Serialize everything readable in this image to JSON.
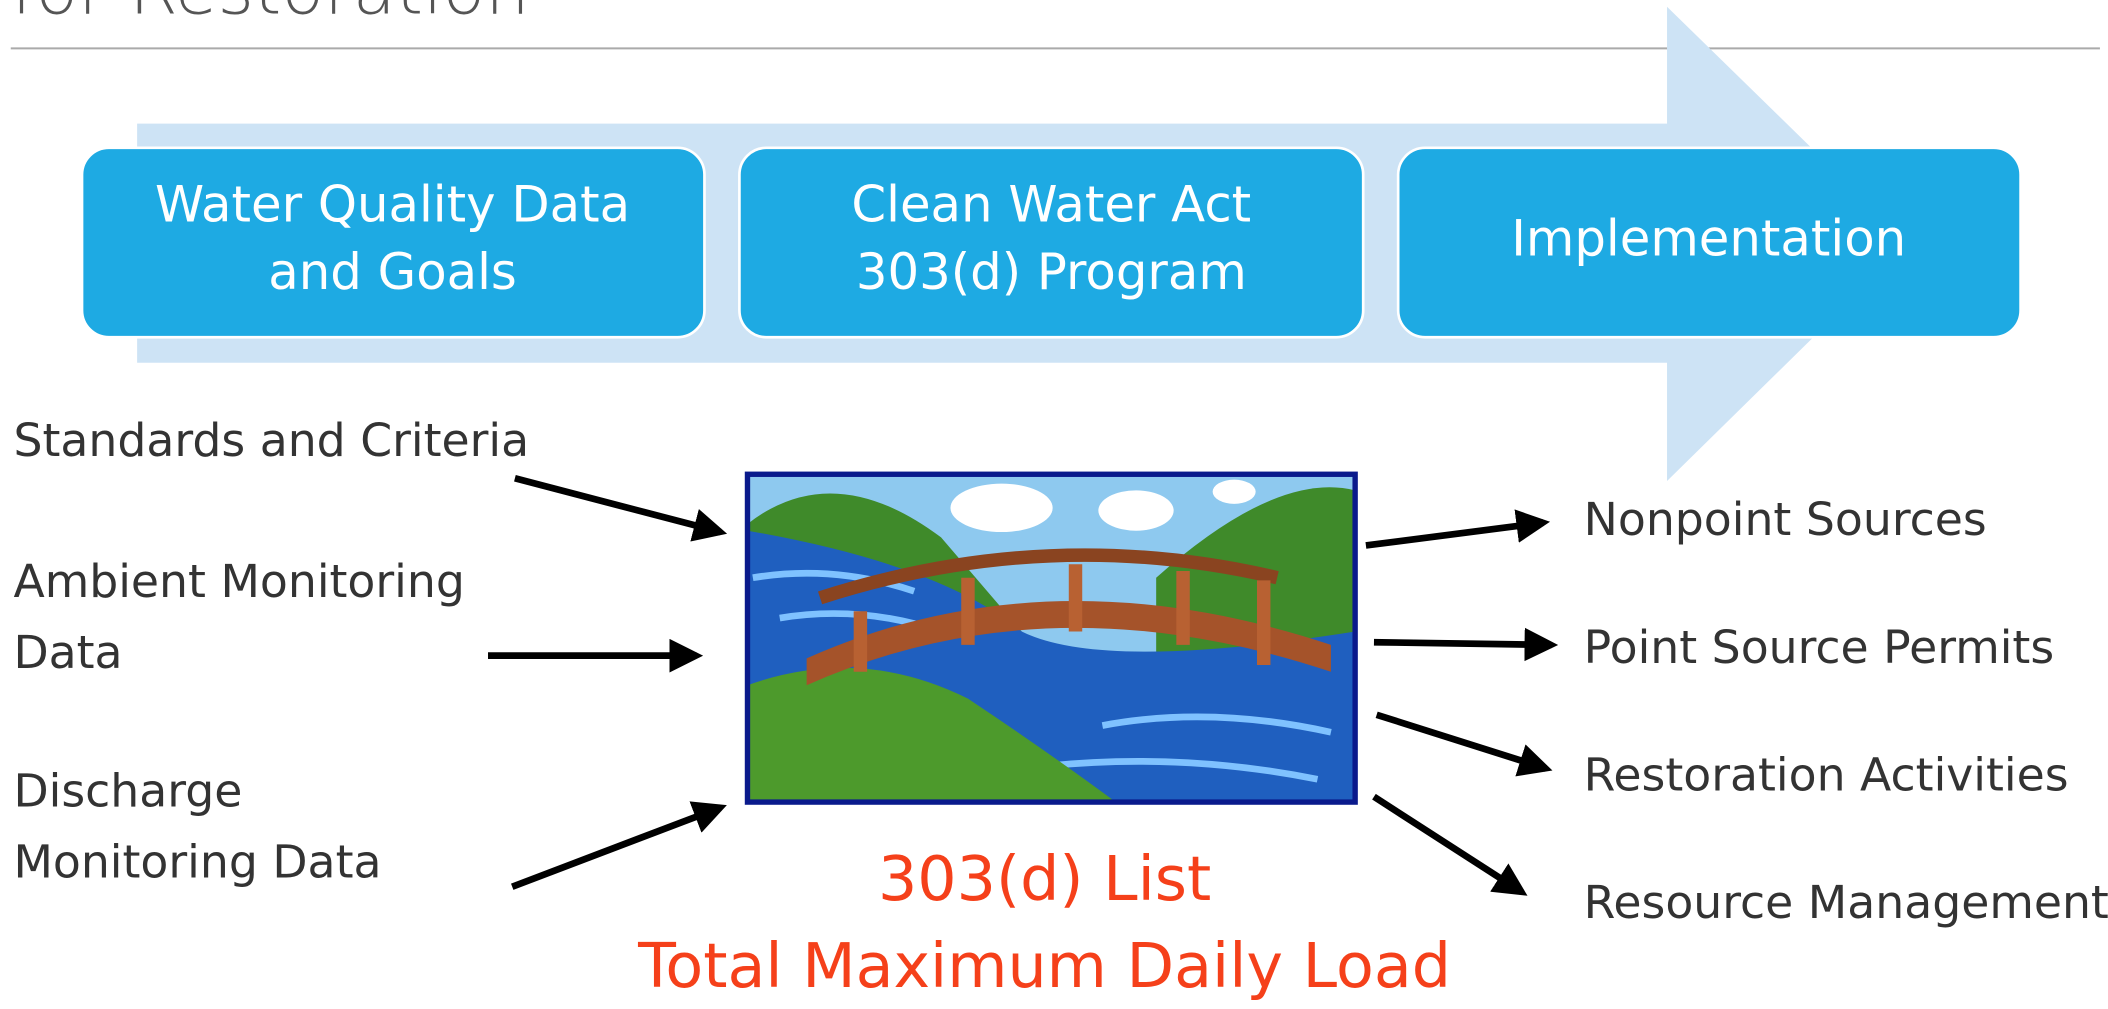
{
  "header": {
    "title": "for Restoration"
  },
  "steps": [
    {
      "lines": [
        "Water Quality Data",
        "and Goals"
      ]
    },
    {
      "lines": [
        "Clean Water Act",
        "303(d) Program"
      ]
    },
    {
      "lines": [
        "Implementation"
      ]
    }
  ],
  "inputs": [
    {
      "lines": [
        "Standards and Criteria"
      ]
    },
    {
      "lines": [
        "Ambient Monitoring",
        "Data"
      ]
    },
    {
      "lines": [
        "Discharge",
        "Monitoring Data"
      ]
    }
  ],
  "outputs": [
    "Nonpoint Sources",
    "Point Source Permits",
    "Restoration Activities",
    "Resource Management"
  ],
  "caption": [
    "303(d) List",
    "Total Maximum Daily Load"
  ]
}
